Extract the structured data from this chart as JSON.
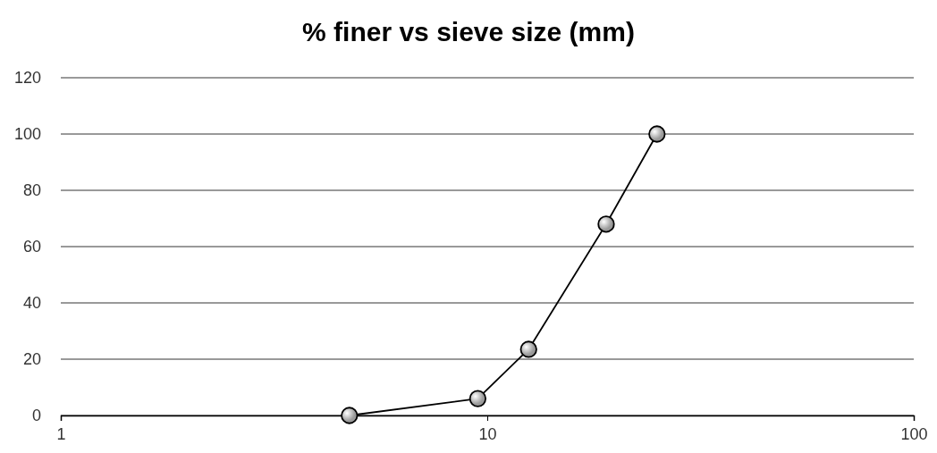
{
  "chart_data": {
    "type": "line",
    "title": "% finer vs sieve size (mm)",
    "x": [
      4.75,
      9.5,
      12.5,
      19,
      25
    ],
    "series": [
      {
        "color": "#000000",
        "values": [
          0,
          6,
          23.5,
          68,
          100
        ]
      }
    ],
    "xlim": [
      1,
      100
    ],
    "xticks": [
      1,
      10,
      100
    ],
    "log": "x",
    "ylim": [
      0,
      120
    ],
    "yticks": [
      0,
      20,
      40,
      60,
      80,
      100,
      120
    ],
    "grid": "y",
    "marker": "circle",
    "line_style": "solid"
  }
}
